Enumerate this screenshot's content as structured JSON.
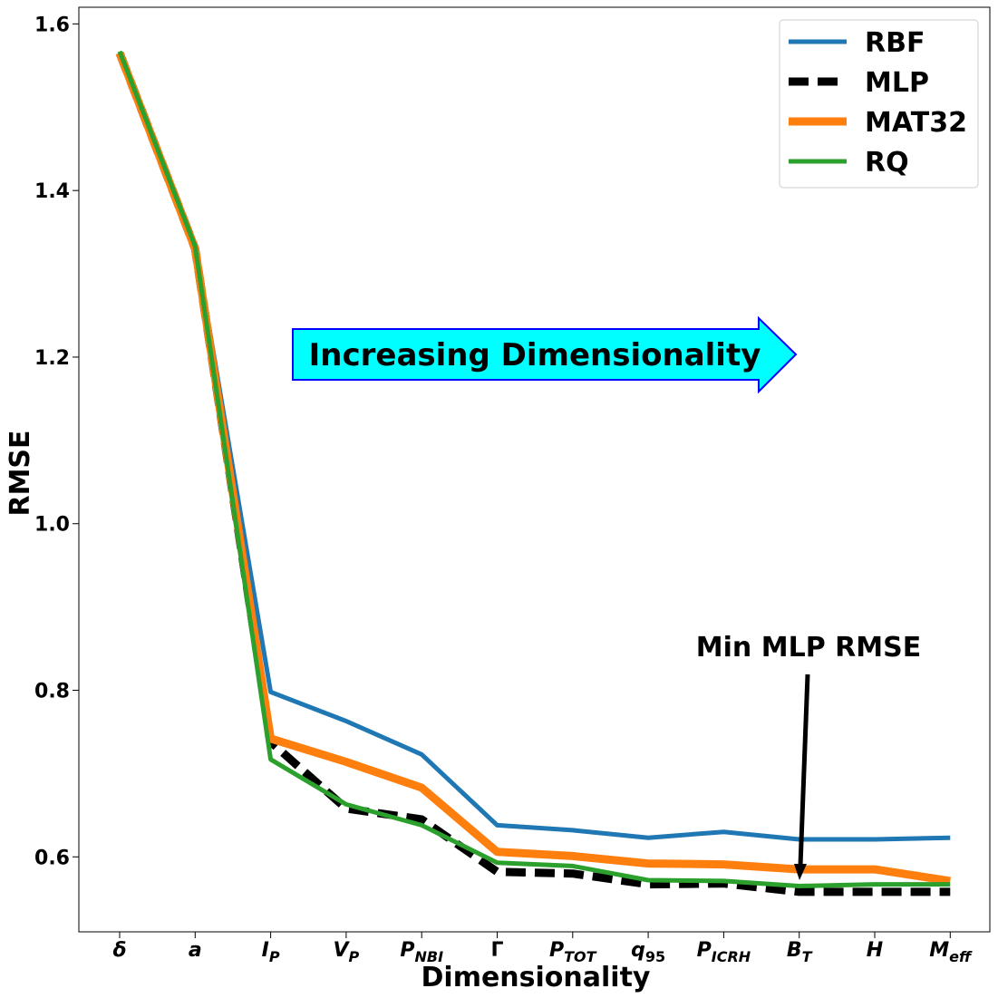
{
  "chart_data": {
    "type": "line",
    "xlabel": "Dimensionality",
    "ylabel": "RMSE",
    "ylim": [
      0.51,
      1.62
    ],
    "yticks": [
      "0.6",
      "0.8",
      "1.0",
      "1.2",
      "1.4",
      "1.6"
    ],
    "grid": false,
    "legend_position": "top-right",
    "categories": [
      {
        "base": "δ",
        "sub": ""
      },
      {
        "base": "a",
        "sub": ""
      },
      {
        "base": "I",
        "sub": "P"
      },
      {
        "base": "V",
        "sub": "P"
      },
      {
        "base": "P",
        "sub": "NBI"
      },
      {
        "base": "Γ",
        "sub": ""
      },
      {
        "base": "P",
        "sub": "TOT"
      },
      {
        "base": "q",
        "sub": "95"
      },
      {
        "base": "P",
        "sub": "ICRH"
      },
      {
        "base": "B",
        "sub": "T"
      },
      {
        "base": "H",
        "sub": ""
      },
      {
        "base": "M",
        "sub": "eff"
      }
    ],
    "series": [
      {
        "name": "RBF",
        "color": "#1f77b4",
        "style": "solid",
        "values": [
          1.565,
          1.335,
          0.798,
          0.763,
          0.723,
          0.638,
          0.632,
          0.623,
          0.63,
          0.621,
          0.621,
          0.623
        ]
      },
      {
        "name": "MLP",
        "color": "#000000",
        "style": "dashed",
        "values": [
          1.565,
          1.33,
          0.738,
          0.658,
          0.645,
          0.582,
          0.58,
          0.567,
          0.568,
          0.558,
          0.558,
          0.558
        ]
      },
      {
        "name": "MAT32",
        "color": "#ff7f0e",
        "style": "solid",
        "values": [
          1.565,
          1.33,
          0.742,
          0.714,
          0.683,
          0.606,
          0.601,
          0.592,
          0.591,
          0.585,
          0.585,
          0.571
        ]
      },
      {
        "name": "RQ",
        "color": "#2ca02c",
        "style": "solid",
        "values": [
          1.567,
          1.333,
          0.717,
          0.663,
          0.638,
          0.593,
          0.589,
          0.572,
          0.571,
          0.565,
          0.567,
          0.567
        ]
      }
    ],
    "annotations": [
      {
        "text": "Increasing Dimensionality",
        "type": "arrow-box",
        "fill": "#00ffff",
        "edge": "#0000ff"
      },
      {
        "text": "Min MLP RMSE",
        "type": "pointer",
        "target_index": 9,
        "target_value": 0.571
      }
    ]
  }
}
